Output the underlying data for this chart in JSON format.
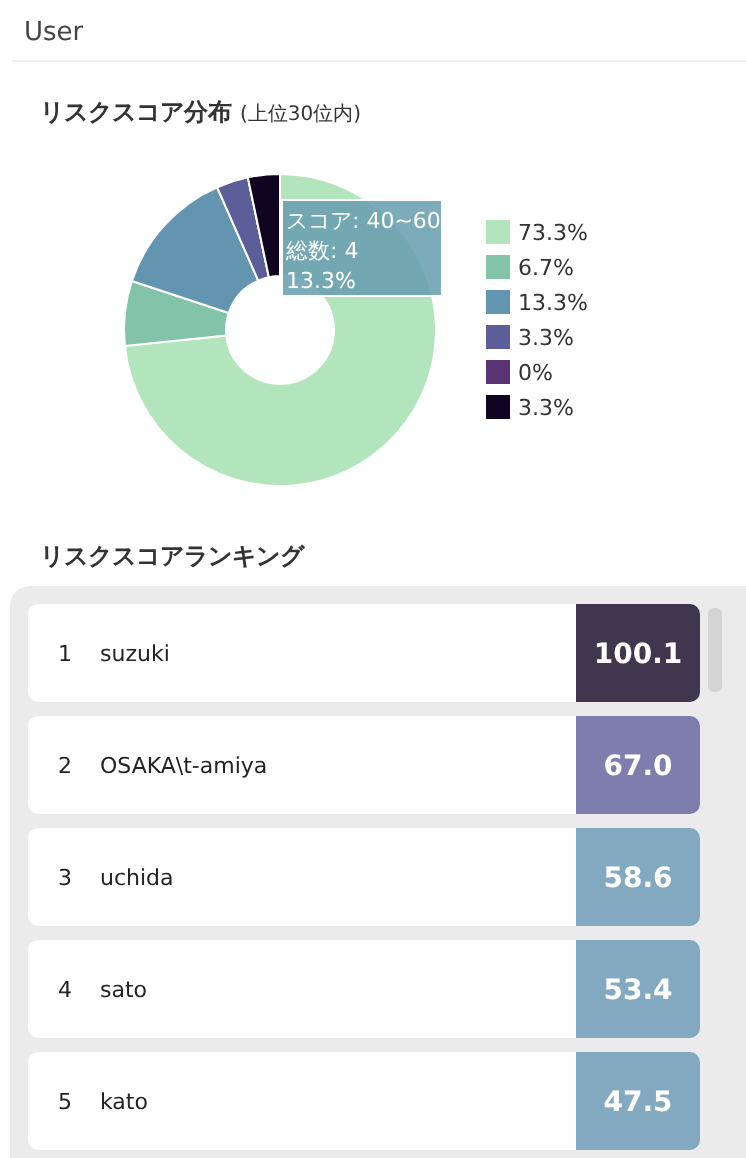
{
  "chart_data": [
    {
      "type": "donut",
      "title": "リスクスコア分布",
      "subtitle": "(上位30位内)",
      "categories": [
        "73.3%",
        "6.7%",
        "13.3%",
        "3.3%",
        "0%",
        "3.3%"
      ],
      "values": [
        73.3,
        6.7,
        13.3,
        3.3,
        0,
        3.3
      ],
      "colors": [
        "#b3e5bd",
        "#82c3a9",
        "#6394b0",
        "#5c5e99",
        "#5a3472",
        "#0f0520"
      ],
      "legend": "right",
      "annotations": [
        "User",
        "スコア: 40~60\n総数: 4\n13.3%"
      ]
    },
    {
      "type": "heatmap",
      "title": "リスクスコアランキング",
      "categories": [
        null
      ],
      "y_categories": [
        "1",
        "2",
        "3",
        "4",
        "5"
      ],
      "y2_categories": [
        "suzuki",
        "OSAKA\\t-amiya",
        "uchida",
        "sato",
        "kato"
      ],
      "cells": [
        [
          100.1
        ],
        [
          67.0
        ],
        [
          58.6
        ],
        [
          53.4
        ],
        [
          47.5
        ]
      ],
      "cell_labels": [
        [
          "100.1"
        ],
        [
          "67.0"
        ],
        [
          "58.6"
        ],
        [
          "53.4"
        ],
        [
          "47.5"
        ]
      ]
    }
  ]
}
